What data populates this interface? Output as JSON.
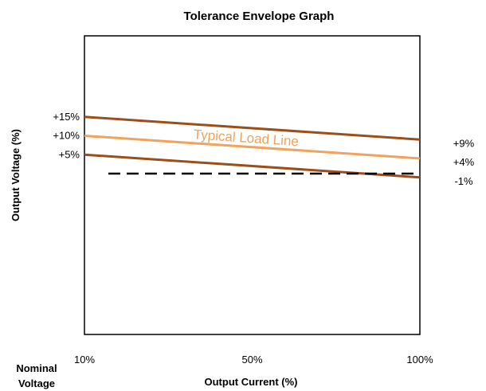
{
  "chart_data": {
    "type": "line",
    "title": "Tolerance Envelope Graph",
    "xlabel": "Output Current (%)",
    "ylabel": "Output Voltage (%)",
    "x_origin_label_line1": "Nominal",
    "x_origin_label_line2": "Voltage",
    "categories": [
      "10%",
      "50%",
      "100%"
    ],
    "x": [
      10,
      100
    ],
    "ylim": [
      -100,
      100
    ],
    "xlim": [
      10,
      100
    ],
    "grid": false,
    "legend": "none",
    "series": [
      {
        "key": "upper",
        "values": [
          15,
          9
        ],
        "start_label": "+15%",
        "end_label": "+9%",
        "color": "#9c4e1a",
        "style": "solid"
      },
      {
        "name": "Typical Load Line",
        "key": "typical",
        "values": [
          10,
          4
        ],
        "start_label": "+10%",
        "end_label": "+4%",
        "color": "#f0a35e",
        "style": "solid"
      },
      {
        "key": "lower",
        "values": [
          5,
          -1
        ],
        "start_label": "+5%",
        "end_label": "-1%",
        "color": "#9c4e1a",
        "style": "solid"
      },
      {
        "key": "nominal",
        "values": [
          0,
          0
        ],
        "color": "#000000",
        "style": "dashed"
      }
    ]
  }
}
